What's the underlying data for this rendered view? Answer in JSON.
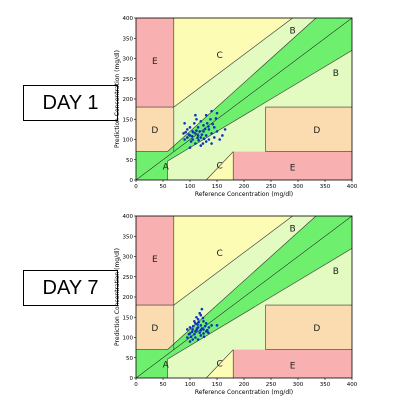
{
  "panels": [
    {
      "label": "DAY 1"
    },
    {
      "label": "DAY 7"
    }
  ],
  "chart_data": [
    {
      "type": "scatter",
      "title": "",
      "xlabel": "Reference Concentration (mg/dl)",
      "ylabel": "Prediction Concentration (mg/dl)",
      "xlim": [
        0,
        400
      ],
      "ylim": [
        0,
        400
      ],
      "xticks": [
        "0",
        "50",
        "100",
        "150",
        "200",
        "250",
        "300",
        "350",
        "400"
      ],
      "yticks": [
        "0",
        "50",
        "100",
        "150",
        "200",
        "250",
        "300",
        "350",
        "400"
      ],
      "zone_labels": [
        "A",
        "B",
        "B",
        "C",
        "C",
        "D",
        "D",
        "E",
        "E"
      ],
      "colors": {
        "A": "#6ef06e",
        "B": "#e3fac0",
        "C": "#fcfcb4",
        "D": "#fadcb0",
        "E": "#f8b0b0",
        "points": "#1030c0"
      },
      "grid": false,
      "points": [
        [
          95,
          125
        ],
        [
          100,
          110
        ],
        [
          105,
          120
        ],
        [
          110,
          115
        ],
        [
          115,
          130
        ],
        [
          120,
          105
        ],
        [
          90,
          100
        ],
        [
          102,
          95
        ],
        [
          108,
          140
        ],
        [
          112,
          150
        ],
        [
          118,
          120
        ],
        [
          125,
          135
        ],
        [
          130,
          110
        ],
        [
          135,
          125
        ],
        [
          140,
          115
        ],
        [
          145,
          130
        ],
        [
          150,
          120
        ],
        [
          155,
          100
        ],
        [
          160,
          110
        ],
        [
          165,
          125
        ],
        [
          100,
          80
        ],
        [
          110,
          90
        ],
        [
          120,
          85
        ],
        [
          130,
          95
        ],
        [
          140,
          90
        ],
        [
          95,
          105
        ],
        [
          105,
          100
        ],
        [
          115,
          110
        ],
        [
          125,
          120
        ],
        [
          135,
          100
        ],
        [
          145,
          105
        ],
        [
          100,
          130
        ],
        [
          110,
          160
        ],
        [
          120,
          145
        ],
        [
          130,
          160
        ],
        [
          140,
          170
        ],
        [
          150,
          165
        ],
        [
          90,
          140
        ],
        [
          88,
          115
        ],
        [
          92,
          118
        ],
        [
          98,
          112
        ],
        [
          104,
          108
        ],
        [
          106,
          118
        ],
        [
          114,
          104
        ],
        [
          122,
          112
        ],
        [
          128,
          126
        ],
        [
          132,
          140
        ],
        [
          138,
          150
        ],
        [
          142,
          138
        ],
        [
          148,
          152
        ],
        [
          112,
          122
        ],
        [
          116,
          98
        ],
        [
          124,
          90
        ],
        [
          126,
          102
        ],
        [
          134,
          132
        ]
      ]
    },
    {
      "type": "scatter",
      "title": "",
      "xlabel": "Reference Concentration (mg/dl)",
      "ylabel": "Prediction Concentration (mg/dl)",
      "xlim": [
        0,
        400
      ],
      "ylim": [
        0,
        400
      ],
      "xticks": [
        "0",
        "50",
        "100",
        "150",
        "200",
        "250",
        "300",
        "350",
        "400"
      ],
      "yticks": [
        "0",
        "50",
        "100",
        "150",
        "200",
        "250",
        "300",
        "350",
        "400"
      ],
      "zone_labels": [
        "A",
        "B",
        "B",
        "C",
        "C",
        "D",
        "D",
        "E",
        "E"
      ],
      "colors": {
        "A": "#6ef06e",
        "B": "#e3fac0",
        "C": "#fcfcb4",
        "D": "#fadcb0",
        "E": "#f8b0b0",
        "points": "#1030c0"
      },
      "grid": false,
      "points": [
        [
          100,
          110
        ],
        [
          105,
          120
        ],
        [
          110,
          115
        ],
        [
          115,
          125
        ],
        [
          120,
          130
        ],
        [
          125,
          120
        ],
        [
          95,
          100
        ],
        [
          100,
          125
        ],
        [
          108,
          140
        ],
        [
          112,
          150
        ],
        [
          118,
          160
        ],
        [
          122,
          170
        ],
        [
          110,
          100
        ],
        [
          115,
          95
        ],
        [
          120,
          105
        ],
        [
          125,
          110
        ],
        [
          130,
          115
        ],
        [
          135,
          125
        ],
        [
          140,
          130
        ],
        [
          100,
          90
        ],
        [
          105,
          95
        ],
        [
          95,
          120
        ],
        [
          110,
          135
        ],
        [
          115,
          145
        ],
        [
          120,
          155
        ],
        [
          125,
          140
        ],
        [
          130,
          135
        ],
        [
          108,
          108
        ],
        [
          112,
          118
        ],
        [
          118,
          112
        ],
        [
          122,
          122
        ],
        [
          128,
          128
        ],
        [
          132,
          118
        ],
        [
          102,
          102
        ],
        [
          106,
          128
        ],
        [
          114,
          132
        ],
        [
          116,
          138
        ],
        [
          124,
          148
        ],
        [
          126,
          102
        ],
        [
          134,
          112
        ],
        [
          98,
          108
        ],
        [
          104,
          114
        ],
        [
          150,
          130
        ],
        [
          120,
          118
        ],
        [
          113,
          122
        ]
      ]
    }
  ]
}
